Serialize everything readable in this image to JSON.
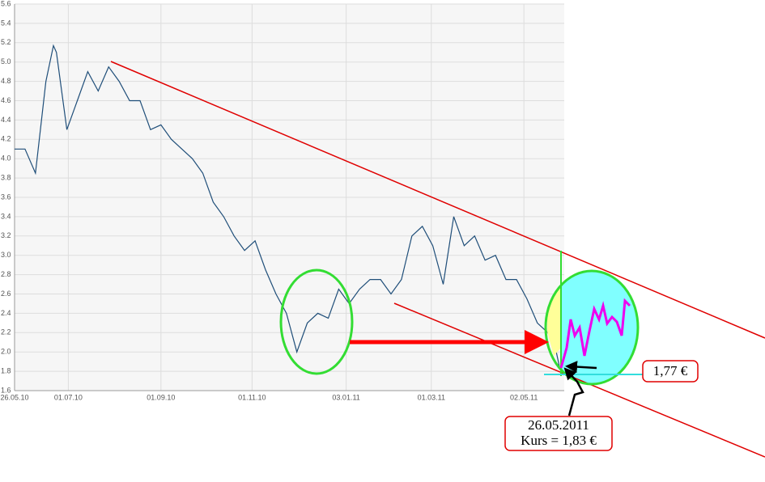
{
  "chart_data": {
    "type": "line",
    "x": [
      0,
      7,
      14,
      21,
      26,
      28,
      35,
      42,
      49,
      56,
      63,
      70,
      77,
      84,
      91,
      98,
      105,
      112,
      119,
      126,
      133,
      140,
      147,
      154,
      161,
      168,
      175,
      182,
      189,
      196,
      203,
      210,
      217,
      224,
      231,
      238,
      245,
      252,
      259,
      266,
      273,
      280,
      287,
      294,
      301,
      308,
      315,
      322,
      329,
      336,
      343,
      350,
      357,
      362,
      365
    ],
    "values": [
      4.1,
      4.1,
      3.85,
      4.8,
      5.17,
      5.1,
      4.3,
      4.6,
      4.9,
      4.7,
      4.95,
      4.8,
      4.6,
      4.6,
      4.3,
      4.35,
      4.2,
      4.1,
      4.0,
      3.85,
      3.55,
      3.4,
      3.2,
      3.05,
      3.15,
      2.85,
      2.6,
      2.4,
      2.0,
      2.3,
      2.4,
      2.35,
      2.65,
      2.5,
      2.65,
      2.75,
      2.75,
      2.6,
      2.75,
      3.2,
      3.3,
      3.1,
      2.7,
      3.4,
      3.1,
      3.2,
      2.95,
      3.0,
      2.75,
      2.75,
      2.55,
      2.3,
      2.2,
      2.05,
      1.83
    ],
    "color": "#1f4e79",
    "xlim": [
      0,
      368
    ],
    "xticks": [
      {
        "value": 0,
        "label": "26.05.10"
      },
      {
        "value": 36,
        "label": "01.07.10"
      },
      {
        "value": 98,
        "label": "01.09.10"
      },
      {
        "value": 159,
        "label": "01.11.10"
      },
      {
        "value": 222,
        "label": "03.01.11"
      },
      {
        "value": 279,
        "label": "01.03.11"
      },
      {
        "value": 341,
        "label": "02.05.11"
      }
    ],
    "ylim": [
      1.6,
      5.6
    ],
    "yticks": [
      1.6,
      1.8,
      {
        "value": 2,
        "label": "2.0"
      },
      2.2,
      2.4,
      2.6,
      2.8,
      {
        "value": 3,
        "label": "3.0"
      },
      3.2,
      3.4,
      3.6,
      3.8,
      {
        "value": 4,
        "label": "4.0"
      },
      4.2,
      4.4,
      4.6,
      4.8,
      {
        "value": 5,
        "label": "5.0"
      },
      5.2,
      5.4,
      5.6
    ],
    "grid": true,
    "annotations": [
      "1,77 €",
      "26.05.2011",
      "Kurs = 1,83 €"
    ]
  }
}
